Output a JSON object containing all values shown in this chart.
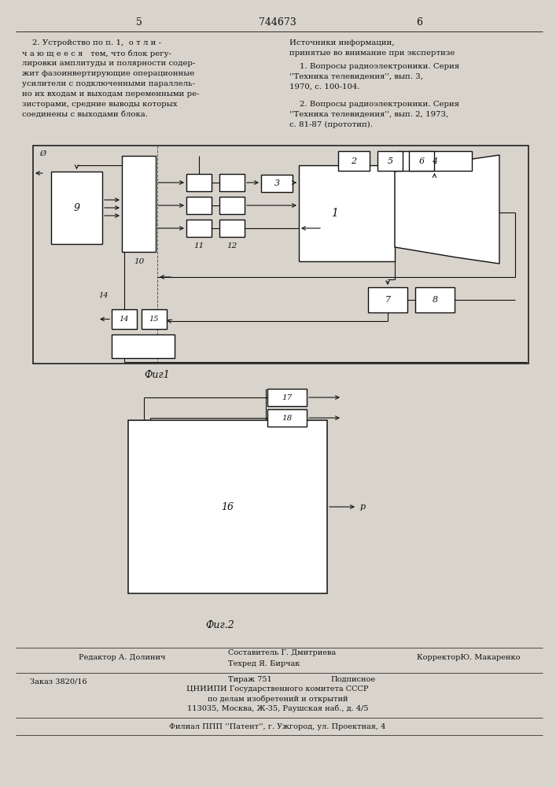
{
  "bg_color": "#d8d4cc",
  "page_number_left": "5",
  "page_number_center": "744673",
  "page_number_right": "6",
  "text_left": "    2. Устройство по п. 1,  о т л и -\nч а ю щ е е с я   тем, что блок регу-\nлировки амплитуды и полярности содер-\nжит фазоинвертирующие операционные\nусилители с подключенными параллель-\nно их входам и выходам переменными ре-\nзисторами, средние выводы которых\nсоединены с выходами блока.",
  "text_right_title": "Источники информации,",
  "text_right_subtitle": "принятые во внимание при экспертизе",
  "text_right_1": "    1. Вопросы радиоэлектроники. Серия\n''Техника телевидения'', вып. 3,\n1970, с. 100-104.",
  "text_right_2": "    2. Вопросы радиоэлектроники. Серия\n''Техника телевидения'', вып. 2, 1973,\nс. 81-87 (прототип).",
  "fig1_caption": "Фиг1",
  "fig2_caption": "Фиг.2",
  "footer_editor": "Редактор А. Долинич",
  "footer_composer": "Составитель Г. Дмитриева",
  "footer_techred": "Техред Я. Бирчак",
  "footer_corrector": "КорректорЮ. Макаренко",
  "footer_order": "Заказ 3820/16",
  "footer_tirazh": "Тираж 751",
  "footer_podpisnoe": "Подписное",
  "footer_cniip1": "ЦНИИПИ Государственного комитета СССР",
  "footer_cniip2": "по делам изобретений и открытий",
  "footer_cniip3": "113035, Москва, Ж-35, Раушская наб., д. 4/5",
  "footer_filial": "Филиал ППП ''Патент'', г. Ужгород, ул. Проектная, 4"
}
